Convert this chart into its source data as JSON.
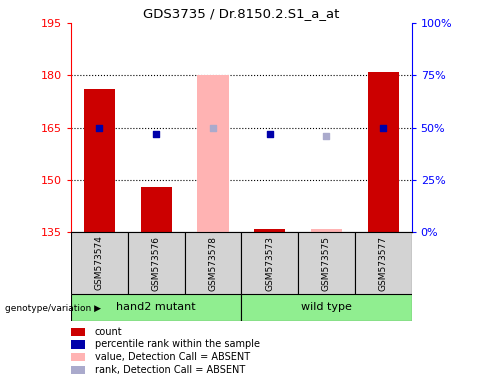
{
  "title": "GDS3735 / Dr.8150.2.S1_a_at",
  "samples": [
    "GSM573574",
    "GSM573576",
    "GSM573578",
    "GSM573573",
    "GSM573575",
    "GSM573577"
  ],
  "bar_color_normal": "#cc0000",
  "bar_color_absent": "#ffb3b3",
  "dot_color_normal": "#0000aa",
  "dot_color_absent": "#aaaacc",
  "ylim_left": [
    135,
    195
  ],
  "ylim_right": [
    0,
    100
  ],
  "yticks_left": [
    135,
    150,
    165,
    180,
    195
  ],
  "yticks_right": [
    0,
    25,
    50,
    75,
    100
  ],
  "ytick_labels_right": [
    "0%",
    "25%",
    "50%",
    "75%",
    "100%"
  ],
  "count_values": [
    176,
    148,
    180,
    136,
    136,
    181
  ],
  "rank_values": [
    50,
    47,
    50,
    47,
    46,
    50
  ],
  "absent_flags": [
    false,
    false,
    true,
    false,
    true,
    false
  ],
  "bar_bottom": 135,
  "dot_size": 25,
  "legend_items": [
    {
      "label": "count",
      "color": "#cc0000"
    },
    {
      "label": "percentile rank within the sample",
      "color": "#0000aa"
    },
    {
      "label": "value, Detection Call = ABSENT",
      "color": "#ffb3b3"
    },
    {
      "label": "rank, Detection Call = ABSENT",
      "color": "#aaaacc"
    }
  ],
  "grid_yticks": [
    150,
    165,
    180
  ],
  "cell_bg": "#d3d3d3",
  "group_bg": "#90ee90",
  "plot_bg": "white"
}
